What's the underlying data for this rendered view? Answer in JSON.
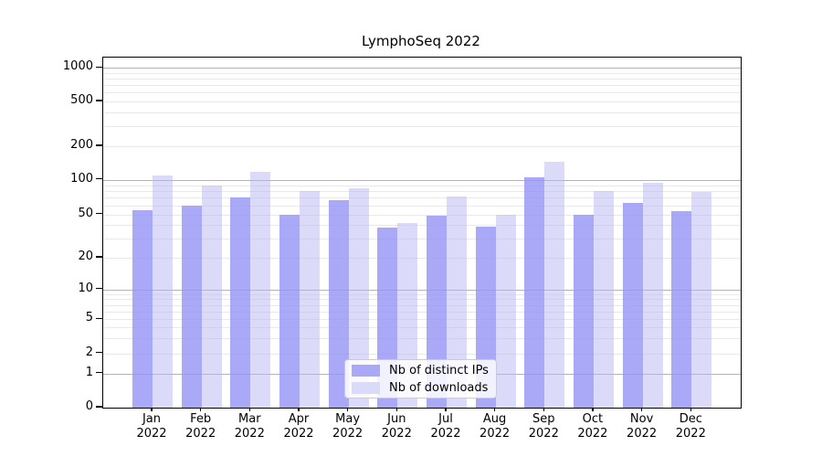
{
  "title": "LymphoSeq 2022",
  "colors": {
    "bar_distinct_ips": "#a9a9f7",
    "bar_downloads": "#dbdbf9",
    "major_gridline": "#b3b3b3",
    "minor_gridline": "#e9e9e9",
    "axis": "#000000",
    "background": "#ffffff"
  },
  "chart_data": {
    "type": "bar",
    "title": "LymphoSeq 2022",
    "xlabel": "",
    "ylabel": "",
    "yscale": "symlog",
    "grid": true,
    "legend_position": "lower center",
    "ylim": [
      0,
      1400
    ],
    "yticks": [
      0,
      1,
      2,
      5,
      10,
      20,
      50,
      100,
      200,
      500,
      1000
    ],
    "minor_yticks": [
      2,
      3,
      4,
      5,
      6,
      7,
      8,
      9,
      20,
      30,
      40,
      50,
      60,
      70,
      80,
      90,
      200,
      300,
      400,
      500,
      600,
      700,
      800,
      900
    ],
    "major_grid_yticks": [
      1,
      10,
      100,
      1000
    ],
    "categories": [
      "Jan 2022",
      "Feb 2022",
      "Mar 2022",
      "Apr 2022",
      "May 2022",
      "Jun 2022",
      "Jul 2022",
      "Aug 2022",
      "Sep 2022",
      "Oct 2022",
      "Nov 2022",
      "Dec 2022"
    ],
    "category_month_labels": [
      "Jan",
      "Feb",
      "Mar",
      "Apr",
      "May",
      "Jun",
      "Jul",
      "Aug",
      "Sep",
      "Oct",
      "Nov",
      "Dec"
    ],
    "category_year_labels": [
      "2022",
      "2022",
      "2022",
      "2022",
      "2022",
      "2022",
      "2022",
      "2022",
      "2022",
      "2022",
      "2022",
      "2022"
    ],
    "series": [
      {
        "name": "Nb of distinct IPs",
        "color": "#a9a9f7",
        "values": [
          55,
          60,
          70,
          50,
          67,
          38,
          49,
          39,
          105,
          50,
          63,
          54
        ]
      },
      {
        "name": "Nb of downloads",
        "color": "#dbdbf9",
        "values": [
          110,
          90,
          118,
          80,
          85,
          42,
          72,
          50,
          145,
          80,
          95,
          78
        ]
      }
    ]
  },
  "legend": {
    "items": [
      {
        "label": "Nb of distinct IPs"
      },
      {
        "label": "Nb of downloads"
      }
    ]
  }
}
